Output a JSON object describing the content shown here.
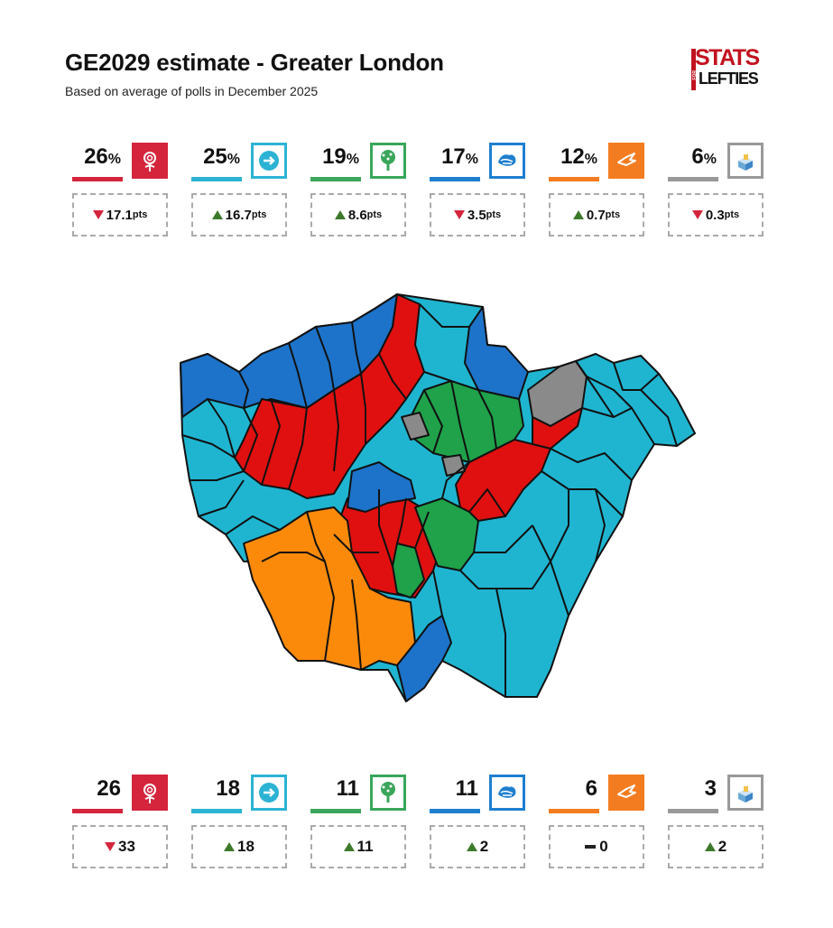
{
  "header": {
    "title": "GE2029 estimate - Greater London",
    "subtitle": "Based on average of polls in December 2025"
  },
  "brand_logo": {
    "line1": "STATS",
    "line2": "LEFTIES",
    "small": "FOR"
  },
  "colors": {
    "labour": "#d4253c",
    "reform": "#2cb3d4",
    "green": "#3aa65b",
    "conservative": "#1e7fcf",
    "libdem": "#f47c20",
    "other": "#999999",
    "map_red": "#e01010",
    "map_lightblue": "#1fb5d1",
    "map_blue": "#1d73c9",
    "map_green": "#1fa24a",
    "map_orange": "#fb8a0a",
    "map_grey": "#8a8a8a"
  },
  "vote_share": [
    {
      "party_icon": "labour-rose-icon",
      "value": "26",
      "unit": "%",
      "direction": "down",
      "change": "17.1",
      "change_unit": "pts"
    },
    {
      "party_icon": "reform-arrow-icon",
      "value": "25",
      "unit": "%",
      "direction": "up",
      "change": "16.7",
      "change_unit": "pts"
    },
    {
      "party_icon": "green-tree-icon",
      "value": "19",
      "unit": "%",
      "direction": "up",
      "change": "8.6",
      "change_unit": "pts"
    },
    {
      "party_icon": "conservative-tree-icon",
      "value": "17",
      "unit": "%",
      "direction": "down",
      "change": "3.5",
      "change_unit": "pts"
    },
    {
      "party_icon": "libdem-bird-icon",
      "value": "12",
      "unit": "%",
      "direction": "up",
      "change": "0.7",
      "change_unit": "pts"
    },
    {
      "party_icon": "ballot-box-icon",
      "value": "6",
      "unit": "%",
      "direction": "down",
      "change": "0.3",
      "change_unit": "pts"
    }
  ],
  "seats": [
    {
      "party_icon": "labour-rose-icon",
      "value": "26",
      "direction": "down",
      "change": "33"
    },
    {
      "party_icon": "reform-arrow-icon",
      "value": "18",
      "direction": "up",
      "change": "18"
    },
    {
      "party_icon": "green-tree-icon",
      "value": "11",
      "direction": "up",
      "change": "11"
    },
    {
      "party_icon": "conservative-tree-icon",
      "value": "11",
      "direction": "up",
      "change": "2"
    },
    {
      "party_icon": "libdem-bird-icon",
      "value": "6",
      "direction": "flat",
      "change": "0"
    },
    {
      "party_icon": "ballot-box-icon",
      "value": "3",
      "direction": "up",
      "change": "2"
    }
  ],
  "map": {
    "region": "Greater London constituencies"
  }
}
